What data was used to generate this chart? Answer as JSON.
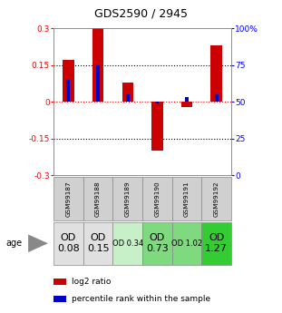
{
  "title": "GDS2590 / 2945",
  "samples": [
    "GSM99187",
    "GSM99188",
    "GSM99189",
    "GSM99190",
    "GSM99191",
    "GSM99192"
  ],
  "log2_ratio": [
    0.17,
    0.3,
    0.08,
    -0.2,
    -0.02,
    0.23
  ],
  "percentile_rank": [
    65,
    75,
    55,
    49,
    53,
    55
  ],
  "od_values": [
    "OD\n0.08",
    "OD\n0.15",
    "OD 0.34",
    "OD\n0.73",
    "OD 1.02",
    "OD\n1.27"
  ],
  "od_fontsize": [
    8,
    8,
    6,
    8,
    6,
    8
  ],
  "cell_colors": [
    "#e0e0e0",
    "#e0e0e0",
    "#c8f0c8",
    "#7fd97f",
    "#7fd97f",
    "#33cc33"
  ],
  "bar_color": "#cc0000",
  "pct_color": "#0000cc",
  "ylim": [
    -0.3,
    0.3
  ],
  "pct_ylim": [
    0,
    100
  ],
  "age_label": "age",
  "legend_log2": "log2 ratio",
  "legend_pct": "percentile rank within the sample",
  "gsm_color": "#d0d0d0"
}
